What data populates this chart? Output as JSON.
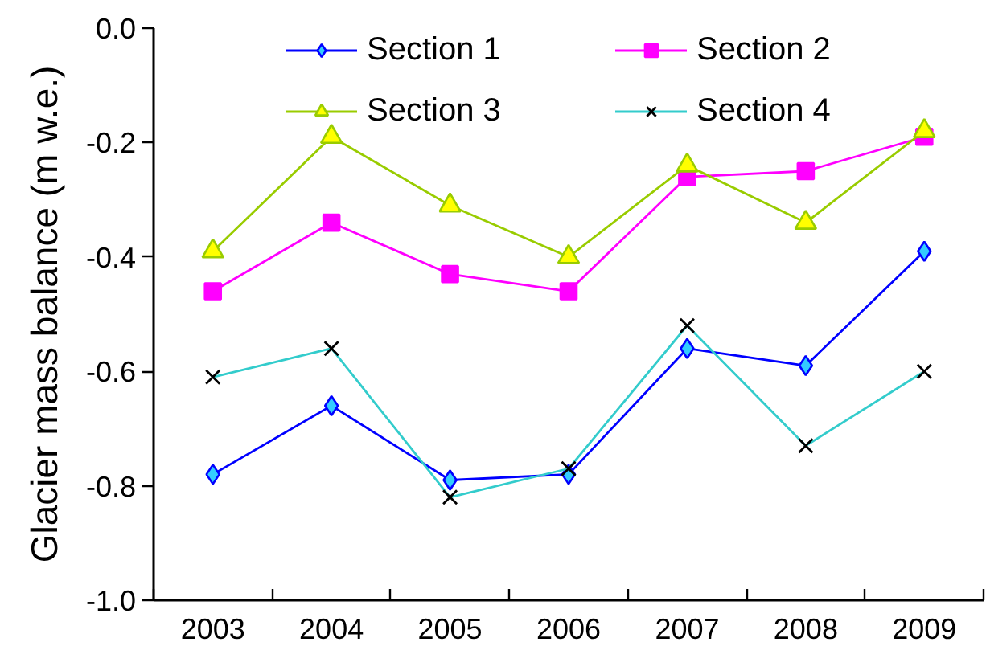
{
  "chart_data": {
    "type": "line",
    "ylabel": "Glacier mass balance (m w.e.)",
    "categories": [
      "2003",
      "2004",
      "2005",
      "2006",
      "2007",
      "2008",
      "2009"
    ],
    "ylim": [
      -1.0,
      0.0
    ],
    "yticks": [
      {
        "value": 0,
        "label": "0.0"
      },
      -0.2,
      -0.4,
      -0.6,
      -0.8,
      {
        "value": -1,
        "label": "-1.0"
      }
    ],
    "grid": false,
    "legend": "top",
    "line_style": "solid",
    "series": [
      {
        "name": "Section 1",
        "color": "#0000ff",
        "marker": "diamond",
        "colors": [
          "#33ccff",
          "#33ccff",
          "#33ccff",
          "#33ccff",
          "#33ccff",
          "#33ccff",
          "#33ccff"
        ],
        "values": [
          -0.78,
          -0.66,
          -0.79,
          -0.78,
          -0.56,
          -0.59,
          -0.39
        ]
      },
      {
        "name": "Section 2",
        "color": "#ff00ff",
        "marker": "square",
        "colors": [
          "#ff00ff",
          "#ff00ff",
          "#ff00ff",
          "#ff00ff",
          "#ff00ff",
          "#ff00ff",
          "#ff00ff"
        ],
        "values": [
          -0.46,
          -0.34,
          -0.43,
          -0.46,
          -0.26,
          -0.25,
          -0.19
        ]
      },
      {
        "name": "Section 3",
        "color": "#99cc00",
        "marker": "triangle",
        "colors": [
          "#ffff00",
          "#ffff00",
          "#ffff00",
          "#ffff00",
          "#ffff00",
          "#ffff00",
          "#ffff00"
        ],
        "values": [
          -0.39,
          -0.19,
          -0.31,
          -0.4,
          -0.24,
          -0.34,
          -0.18
        ]
      },
      {
        "name": "Section 4",
        "color": "#33cccc",
        "marker": "cross",
        "colors": [
          "#000000",
          "#000000",
          "#000000",
          "#000000",
          "#000000",
          "#000000",
          "#000000"
        ],
        "values": [
          -0.61,
          -0.56,
          -0.82,
          -0.77,
          -0.52,
          -0.73,
          -0.6
        ]
      }
    ]
  }
}
